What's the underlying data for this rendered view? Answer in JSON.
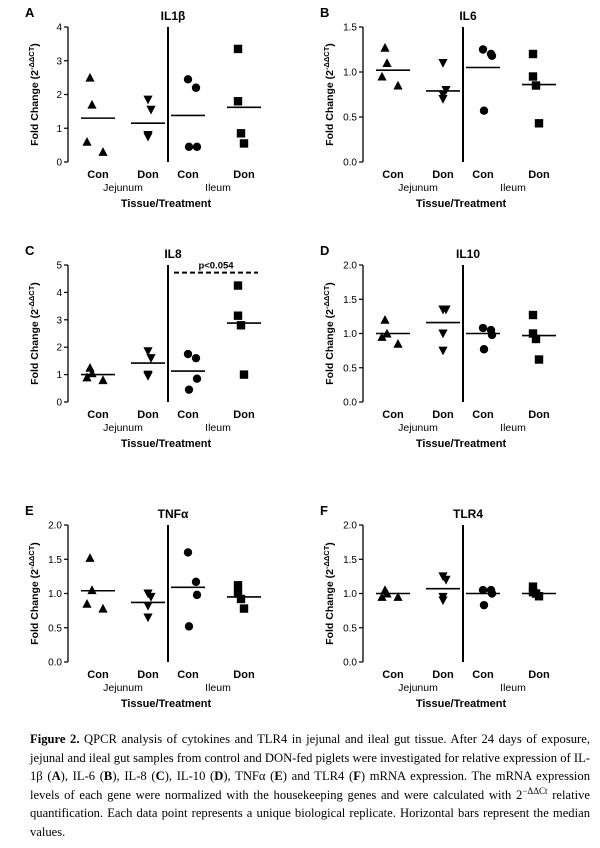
{
  "chart_data": [
    {
      "panel": "A",
      "type": "scatter",
      "title": "IL1β",
      "ylabel": "Fold Change (2^-ΔΔCT)",
      "xlabel": "Tissue/Treatment",
      "ylim": [
        0,
        4
      ],
      "yticks": [
        0,
        1,
        2,
        3,
        4
      ],
      "ytick_labels": [
        "0",
        "1",
        "2",
        "3",
        "4"
      ],
      "groups": [
        "Jejunum",
        "Ileum"
      ],
      "categories": [
        "Con",
        "Don",
        "Con",
        "Don"
      ],
      "markers": [
        "triangle",
        "triangle-down",
        "circle",
        "square"
      ],
      "values": [
        [
          2.5,
          1.7,
          0.6,
          0.3
        ],
        [
          1.85,
          1.55,
          0.8,
          0.75
        ],
        [
          2.45,
          2.2,
          0.45,
          0.45
        ],
        [
          3.35,
          1.8,
          0.85,
          0.55
        ]
      ],
      "medians": [
        1.3,
        1.15,
        1.38,
        1.62
      ],
      "annotation": null
    },
    {
      "panel": "B",
      "type": "scatter",
      "title": "IL6",
      "ylabel": "Fold Change (2^-ΔΔCT)",
      "xlabel": "Tissue/Treatment",
      "ylim": [
        0,
        1.5
      ],
      "yticks": [
        0,
        0.5,
        1.0,
        1.5
      ],
      "ytick_labels": [
        "0.0",
        "0.5",
        "1.0",
        "1.5"
      ],
      "groups": [
        "Jejunum",
        "Ileum"
      ],
      "categories": [
        "Con",
        "Don",
        "Con",
        "Don"
      ],
      "markers": [
        "triangle",
        "triangle-down",
        "circle",
        "square"
      ],
      "values": [
        [
          1.27,
          1.1,
          0.95,
          0.85
        ],
        [
          1.1,
          0.8,
          0.75,
          0.7
        ],
        [
          1.25,
          1.2,
          1.18,
          0.57
        ],
        [
          1.2,
          0.95,
          0.85,
          0.43
        ]
      ],
      "medians": [
        1.02,
        0.79,
        1.05,
        0.86
      ],
      "annotation": null
    },
    {
      "panel": "C",
      "type": "scatter",
      "title": "IL8",
      "ylabel": "Fold Change (2^-ΔΔCT)",
      "xlabel": "Tissue/Treatment",
      "ylim": [
        0,
        5
      ],
      "yticks": [
        0,
        1,
        2,
        3,
        4,
        5
      ],
      "ytick_labels": [
        "0",
        "1",
        "2",
        "3",
        "4",
        "5"
      ],
      "groups": [
        "Jejunum",
        "Ileum"
      ],
      "categories": [
        "Con",
        "Don",
        "Con",
        "Don"
      ],
      "markers": [
        "triangle",
        "triangle-down",
        "circle",
        "square"
      ],
      "values": [
        [
          1.25,
          1.05,
          0.9,
          0.8
        ],
        [
          1.85,
          1.6,
          1.0,
          0.95
        ],
        [
          1.75,
          1.6,
          0.85,
          0.45
        ],
        [
          4.25,
          3.15,
          2.8,
          1.0
        ]
      ],
      "medians": [
        1.0,
        1.42,
        1.13,
        2.88
      ],
      "annotation": {
        "text": "p<0.054",
        "from": 2,
        "to": 3,
        "y": 4.72
      }
    },
    {
      "panel": "D",
      "type": "scatter",
      "title": "IL10",
      "ylabel": "Fold Change (2^-ΔΔCT)",
      "xlabel": "Tissue/Treatment",
      "ylim": [
        0,
        2
      ],
      "yticks": [
        0,
        0.5,
        1.0,
        1.5,
        2.0
      ],
      "ytick_labels": [
        "0.0",
        "0.5",
        "1.0",
        "1.5",
        "2.0"
      ],
      "groups": [
        "Jejunum",
        "Ileum"
      ],
      "categories": [
        "Con",
        "Don",
        "Con",
        "Don"
      ],
      "markers": [
        "triangle",
        "triangle-down",
        "circle",
        "square"
      ],
      "values": [
        [
          1.2,
          1.0,
          0.95,
          0.85
        ],
        [
          1.35,
          1.35,
          1.0,
          0.75
        ],
        [
          1.08,
          1.05,
          0.98,
          0.77
        ],
        [
          1.27,
          1.0,
          0.92,
          0.62
        ]
      ],
      "medians": [
        1.0,
        1.16,
        1.0,
        0.97
      ],
      "annotation": null
    },
    {
      "panel": "E",
      "type": "scatter",
      "title": "TNFα",
      "ylabel": "Fold Change (2^-ΔΔCT)",
      "xlabel": "Tissue/Treatment",
      "ylim": [
        0,
        2
      ],
      "yticks": [
        0,
        0.5,
        1.0,
        1.5,
        2.0
      ],
      "ytick_labels": [
        "0.0",
        "0.5",
        "1.0",
        "1.5",
        "2.0"
      ],
      "groups": [
        "Jejunum",
        "Ileum"
      ],
      "categories": [
        "Con",
        "Don",
        "Con",
        "Don"
      ],
      "markers": [
        "triangle",
        "triangle-down",
        "circle",
        "square"
      ],
      "values": [
        [
          1.52,
          1.05,
          0.85,
          0.78
        ],
        [
          1.0,
          0.95,
          0.82,
          0.65
        ],
        [
          1.6,
          1.17,
          0.98,
          0.52
        ],
        [
          1.12,
          1.0,
          0.92,
          0.78
        ]
      ],
      "medians": [
        1.04,
        0.87,
        1.09,
        0.95
      ],
      "annotation": null
    },
    {
      "panel": "F",
      "type": "scatter",
      "title": "TLR4",
      "ylabel": "Fold Change (2^-ΔΔCT)",
      "xlabel": "Tissue/Treatment",
      "ylim": [
        0,
        2
      ],
      "yticks": [
        0,
        0.5,
        1.0,
        1.5,
        2.0
      ],
      "ytick_labels": [
        "0.0",
        "0.5",
        "1.0",
        "1.5",
        "2.0"
      ],
      "groups": [
        "Jejunum",
        "Ileum"
      ],
      "categories": [
        "Con",
        "Don",
        "Con",
        "Don"
      ],
      "markers": [
        "triangle",
        "triangle-down",
        "circle",
        "square"
      ],
      "values": [
        [
          1.05,
          1.0,
          0.95,
          0.95
        ],
        [
          1.25,
          1.2,
          0.95,
          0.9
        ],
        [
          1.05,
          1.05,
          1.0,
          0.83
        ],
        [
          1.1,
          1.02,
          1.0,
          0.96
        ]
      ],
      "medians": [
        1.0,
        1.07,
        1.0,
        1.0
      ],
      "annotation": null
    }
  ],
  "caption": {
    "label": "Figure 2.",
    "segments": [
      {
        "t": "QPCR analysis of cytokines and TLR4 in jejunal and ileal gut tissue.  After 24 days of exposure, jejunal and ileal gut samples from control and DON-fed piglets were investigated for relative expression of IL-1β (",
        "b": false
      },
      {
        "t": "A",
        "b": true
      },
      {
        "t": "), IL-6 (",
        "b": false
      },
      {
        "t": "B",
        "b": true
      },
      {
        "t": "), IL-8 (",
        "b": false
      },
      {
        "t": "C",
        "b": true
      },
      {
        "t": "), IL-10 (",
        "b": false
      },
      {
        "t": "D",
        "b": true
      },
      {
        "t": "), TNFα (",
        "b": false
      },
      {
        "t": "E",
        "b": true
      },
      {
        "t": ") and TLR4 (",
        "b": false
      },
      {
        "t": "F",
        "b": true
      },
      {
        "t": ") mRNA expression. The mRNA expression levels of each gene were normalized with the housekeeping genes and were calculated with 2",
        "b": false
      },
      {
        "t": "−ΔΔCt",
        "b": false,
        "sup": true
      },
      {
        "t": " relative quantification. Each data point represents a unique biological replicate. Horizontal bars represent the median values.",
        "b": false
      }
    ]
  }
}
